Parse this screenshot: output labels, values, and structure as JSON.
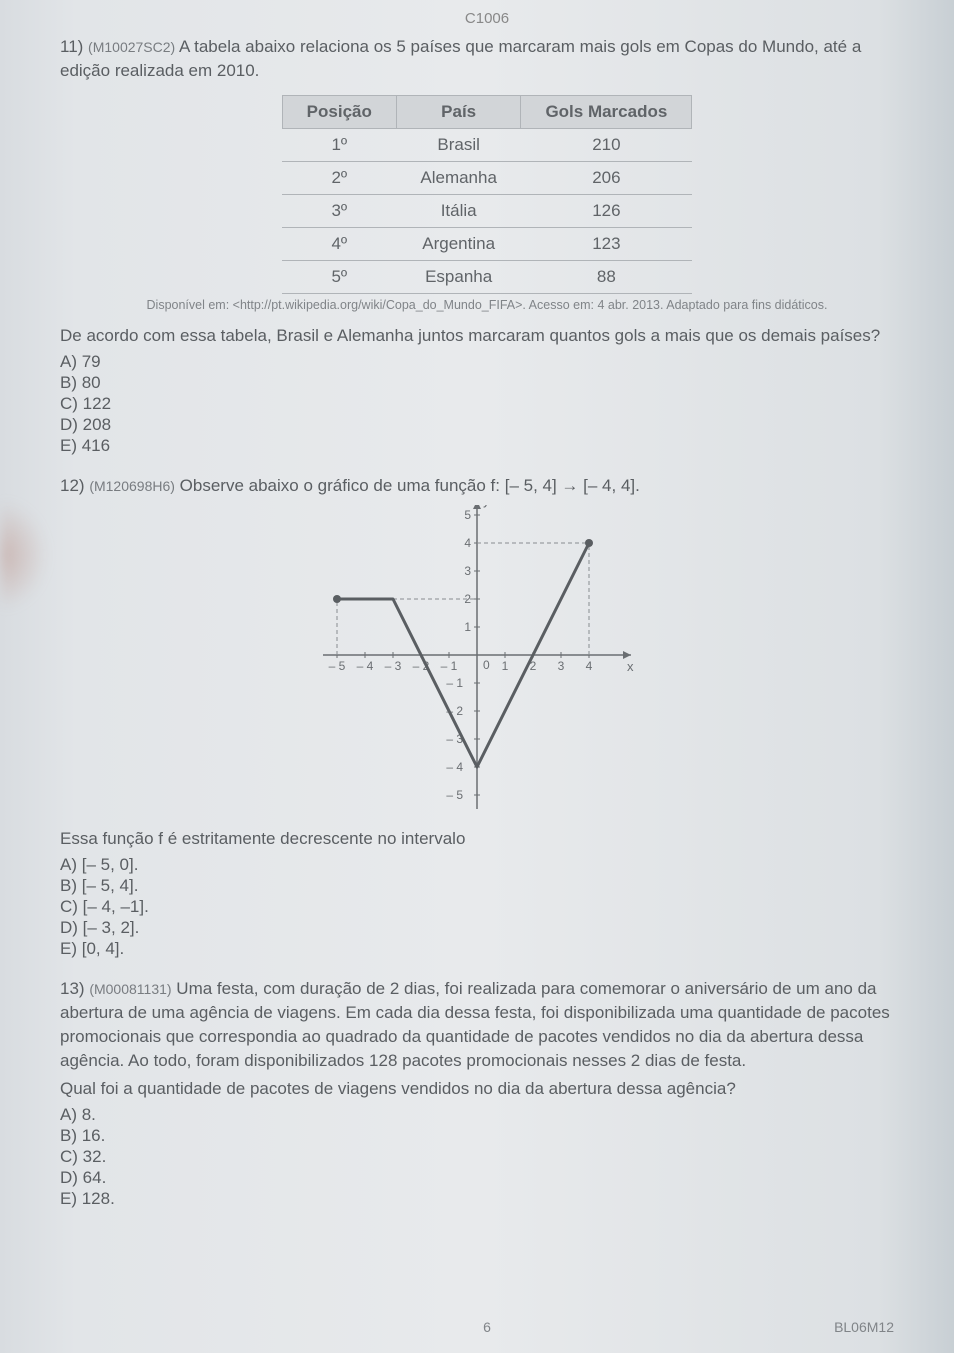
{
  "header_code": "C1006",
  "q11": {
    "num": "11)",
    "ref": "(M10027SC2)",
    "text": "A tabela abaixo relaciona os 5 países que marcaram mais gols em Copas do Mundo, até a edição realizada em 2010.",
    "table": {
      "headers": [
        "Posição",
        "País",
        "Gols Marcados"
      ],
      "rows": [
        [
          "1º",
          "Brasil",
          "210"
        ],
        [
          "2º",
          "Alemanha",
          "206"
        ],
        [
          "3º",
          "Itália",
          "126"
        ],
        [
          "4º",
          "Argentina",
          "123"
        ],
        [
          "5º",
          "Espanha",
          "88"
        ]
      ]
    },
    "source": "Disponível em: <http://pt.wikipedia.org/wiki/Copa_do_Mundo_FIFA>. Acesso em: 4 abr. 2013. Adaptado para fins didáticos.",
    "subtext": "De acordo com essa tabela, Brasil e Alemanha juntos marcaram quantos gols a mais que os demais países?",
    "choices": [
      "A) 79",
      "B) 80",
      "C) 122",
      "D) 208",
      "E) 416"
    ]
  },
  "q12": {
    "num": "12)",
    "ref": "(M120698H6)",
    "text": "Observe abaixo o gráfico de uma função f: [– 5, 4] → [– 4, 4].",
    "graph": {
      "xlim": [
        -5.5,
        5.5
      ],
      "ylim": [
        -5.5,
        5.5
      ],
      "xticks": [
        -5,
        -4,
        -3,
        -2,
        -1,
        1,
        2,
        3,
        4
      ],
      "yticks": [
        -5,
        -4,
        -3,
        -2,
        -1,
        1,
        2,
        3,
        4,
        5
      ],
      "axis_color": "#6a6e72",
      "grid_color": "#9a9ea2",
      "line_color": "#5a5e62",
      "dashed_color": "#888c90",
      "line_width": 3,
      "points": [
        [
          -5,
          2
        ],
        [
          -3,
          2
        ],
        [
          0,
          -4
        ],
        [
          4,
          4
        ]
      ],
      "dashed_guides": [
        {
          "from": [
            -5,
            0
          ],
          "to": [
            -5,
            2
          ]
        },
        {
          "from": [
            -5,
            2
          ],
          "to": [
            0,
            2
          ]
        },
        {
          "from": [
            0,
            4
          ],
          "to": [
            4,
            4
          ]
        },
        {
          "from": [
            4,
            0
          ],
          "to": [
            4,
            4
          ]
        }
      ],
      "endpoints": [
        [
          -5,
          2
        ],
        [
          4,
          4
        ]
      ]
    },
    "subtext": "Essa função f é estritamente decrescente no intervalo",
    "choices": [
      "A) [– 5, 0].",
      "B) [– 5, 4].",
      "C) [– 4, –1].",
      "D) [– 3, 2].",
      "E) [0, 4]."
    ]
  },
  "q13": {
    "num": "13)",
    "ref": "(M00081131)",
    "text": "Uma festa, com duração de 2 dias, foi realizada para comemorar o aniversário de um ano da abertura de uma agência de viagens. Em cada dia dessa festa, foi disponibilizada uma quantidade de pacotes promocionais que correspondia ao quadrado da quantidade de pacotes vendidos no dia da abertura dessa agência. Ao todo, foram disponibilizados 128 pacotes promocionais nesses 2 dias de festa.",
    "subtext": "Qual foi a quantidade de pacotes de viagens vendidos no dia da abertura dessa agência?",
    "choices": [
      "A) 8.",
      "B) 16.",
      "C) 32.",
      "D) 64.",
      "E) 128."
    ]
  },
  "footer": {
    "page": "6",
    "right": "BL06M12"
  }
}
